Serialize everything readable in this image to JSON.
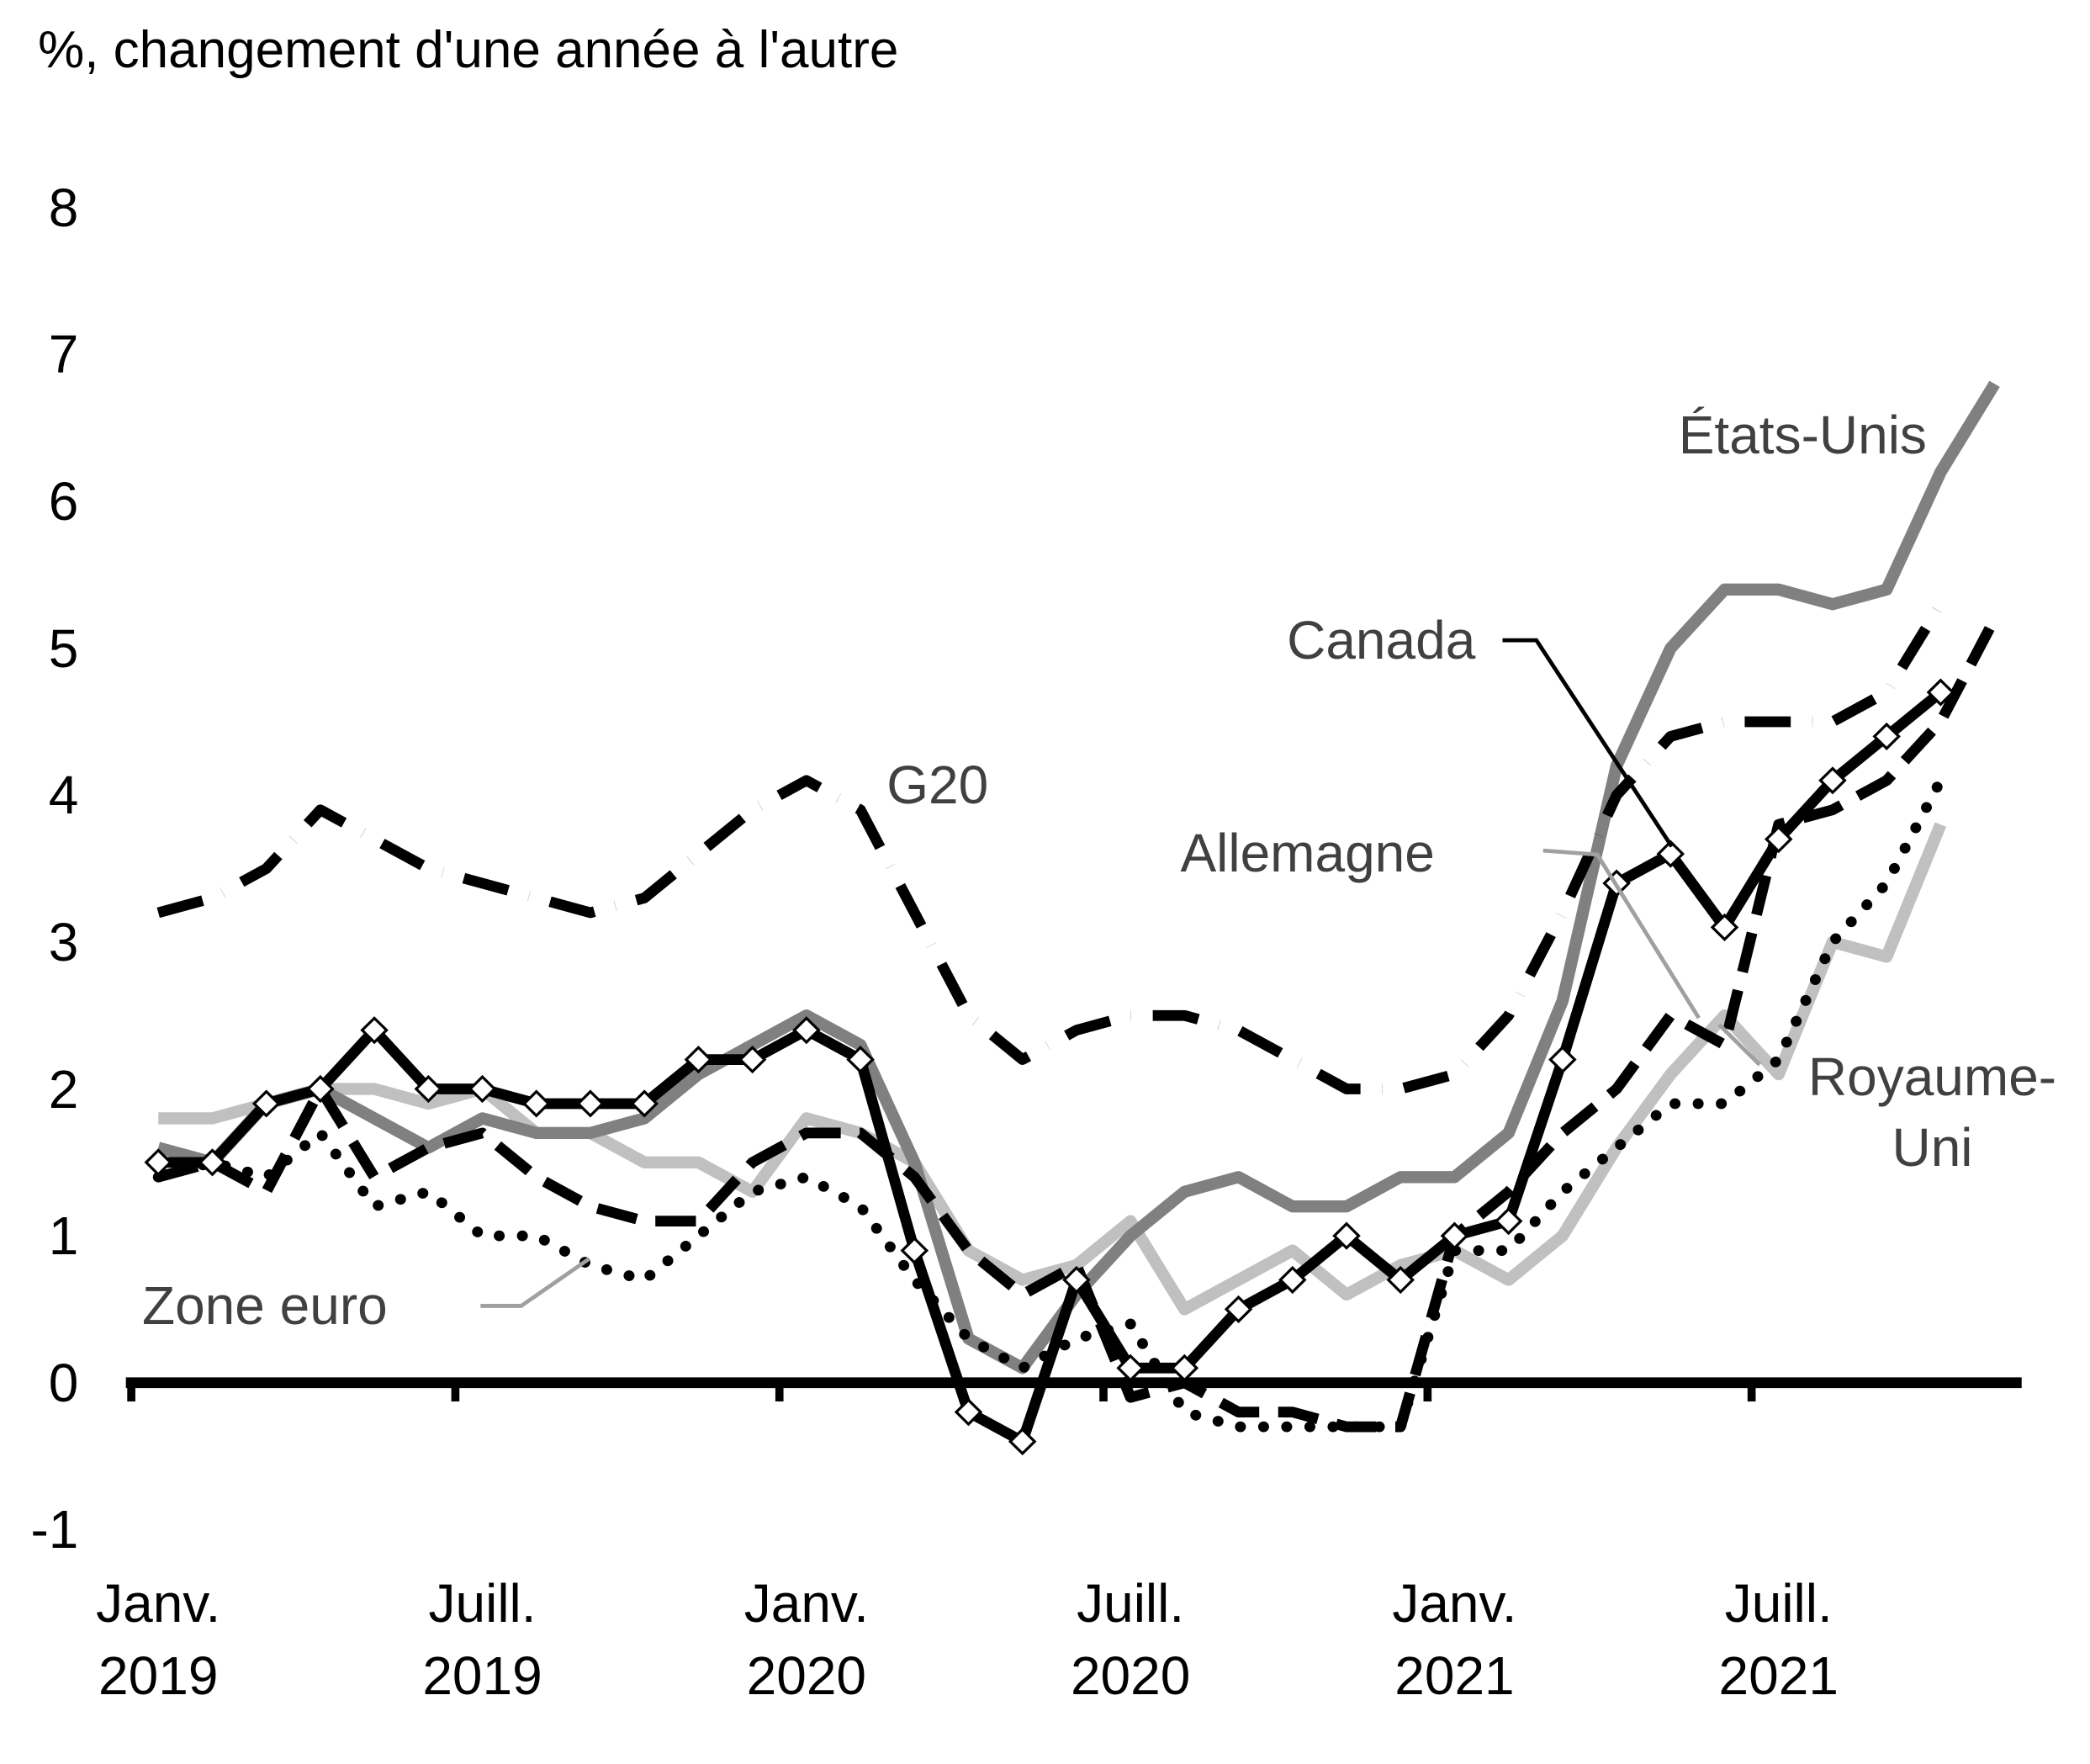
{
  "chart_data": {
    "type": "line",
    "y_axis_label": "%, changement d'une année à l'autre",
    "categories": [
      "Janv. 2019",
      null,
      null,
      null,
      null,
      null,
      "Juill. 2019",
      null,
      null,
      null,
      null,
      null,
      "Janv. 2020",
      null,
      null,
      null,
      null,
      null,
      "Juill. 2020",
      null,
      null,
      null,
      null,
      null,
      "Janv. 2021",
      null,
      null,
      null,
      null,
      null,
      "Juill. 2021",
      null,
      null,
      null,
      null
    ],
    "ylim": [
      -1,
      8
    ],
    "yticks": [
      -1,
      0,
      1,
      2,
      3,
      4,
      5,
      6,
      7,
      8
    ],
    "series": [
      {
        "name": "Canada",
        "color": "#000000",
        "style": "solid",
        "markers": true,
        "values": [
          1.5,
          1.5,
          1.9,
          2.0,
          2.4,
          2.0,
          2.0,
          1.9,
          1.9,
          1.9,
          2.2,
          2.2,
          2.4,
          2.2,
          0.9,
          -0.2,
          -0.4,
          0.7,
          0.1,
          0.1,
          0.5,
          0.7,
          1.0,
          0.7,
          1.0,
          1.1,
          2.2,
          3.4,
          3.6,
          3.1,
          3.7,
          4.1,
          4.4,
          4.7,
          null
        ]
      },
      {
        "name": "États-Unis",
        "color": "#808080",
        "style": "solid",
        "markers": false,
        "values": [
          1.6,
          1.5,
          1.9,
          2.0,
          1.8,
          1.6,
          1.8,
          1.7,
          1.7,
          1.8,
          2.1,
          2.3,
          2.5,
          2.3,
          1.5,
          0.3,
          0.1,
          0.6,
          1.0,
          1.3,
          1.4,
          1.2,
          1.2,
          1.4,
          1.4,
          1.7,
          2.6,
          4.2,
          5.0,
          5.4,
          5.4,
          5.3,
          5.4,
          6.2,
          6.8
        ]
      },
      {
        "name": "Royaume-Uni",
        "color": "#c0c0c0",
        "style": "solid",
        "markers": false,
        "values": [
          1.8,
          1.8,
          1.9,
          2.0,
          2.0,
          1.9,
          2.0,
          1.7,
          1.7,
          1.5,
          1.5,
          1.3,
          1.8,
          1.7,
          1.5,
          0.9,
          0.7,
          0.8,
          1.1,
          0.5,
          0.7,
          0.9,
          0.6,
          0.8,
          0.9,
          0.7,
          1.0,
          1.6,
          2.1,
          2.5,
          2.1,
          3.0,
          2.9,
          3.8,
          null
        ]
      },
      {
        "name": "Zone euro",
        "color": "#000000",
        "style": "dotted",
        "markers": false,
        "values": [
          1.4,
          1.5,
          1.4,
          1.7,
          1.2,
          1.3,
          1.0,
          1.0,
          0.8,
          0.7,
          1.0,
          1.3,
          1.4,
          1.2,
          0.7,
          0.3,
          0.1,
          0.3,
          0.4,
          -0.2,
          -0.3,
          -0.3,
          -0.3,
          -0.3,
          0.9,
          0.9,
          1.3,
          1.6,
          1.9,
          1.9,
          2.2,
          3.0,
          3.4,
          4.1,
          null
        ]
      },
      {
        "name": "Allemagne",
        "color": "#000000",
        "style": "dashed",
        "markers": false,
        "values": [
          1.4,
          1.5,
          1.3,
          2.0,
          1.4,
          1.6,
          1.7,
          1.4,
          1.2,
          1.1,
          1.1,
          1.5,
          1.7,
          1.7,
          1.4,
          0.9,
          0.6,
          0.8,
          -0.1,
          0.0,
          -0.2,
          -0.2,
          -0.3,
          -0.3,
          1.0,
          1.3,
          1.7,
          2.0,
          2.5,
          2.3,
          3.8,
          3.9,
          4.1,
          4.5,
          5.2
        ]
      },
      {
        "name": "G20",
        "color": "#000000",
        "style": "dashdot",
        "markers": false,
        "values": [
          3.2,
          3.3,
          3.5,
          3.9,
          3.7,
          3.5,
          3.4,
          3.3,
          3.2,
          3.3,
          3.6,
          3.9,
          4.1,
          3.9,
          3.2,
          2.5,
          2.2,
          2.4,
          2.5,
          2.5,
          2.4,
          2.2,
          2.0,
          2.0,
          2.1,
          2.5,
          3.2,
          4.0,
          4.4,
          4.5,
          4.5,
          4.5,
          4.7,
          5.3,
          null
        ]
      }
    ]
  }
}
